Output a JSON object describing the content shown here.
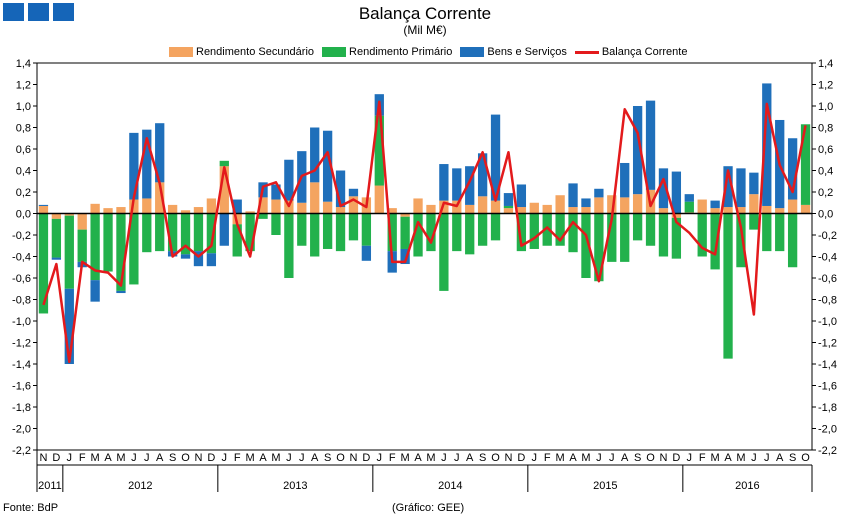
{
  "header": {
    "title": "Balança Corrente",
    "subtitle": "(Mil M€)"
  },
  "footer": {
    "source": "Fonte: BdP",
    "credit": "(Gráfico: GEE)"
  },
  "colors": {
    "secundario": "#f4a460",
    "primario": "#22b14c",
    "bens": "#1f6fba",
    "balanca": "#e31a1c"
  },
  "chart_data": {
    "type": "bar",
    "stacked": true,
    "title": "Balança Corrente",
    "ylabel": "(Mil M€)",
    "ylim": [
      -2.2,
      1.4
    ],
    "yticks": [
      "1,4",
      "1,2",
      "1,0",
      "0,8",
      "0,6",
      "0,4",
      "0,2",
      "0,0",
      "-0,2",
      "-0,4",
      "-0,6",
      "-0,8",
      "-1,0",
      "-1,2",
      "-1,4",
      "-1,6",
      "-1,8",
      "-2,0",
      "-2,2"
    ],
    "categories": [
      "N",
      "D",
      "J",
      "F",
      "M",
      "A",
      "M",
      "J",
      "J",
      "A",
      "S",
      "O",
      "N",
      "D",
      "J",
      "F",
      "M",
      "A",
      "M",
      "J",
      "J",
      "A",
      "S",
      "O",
      "N",
      "D",
      "J",
      "F",
      "M",
      "A",
      "M",
      "J",
      "J",
      "A",
      "S",
      "O",
      "N",
      "D",
      "J",
      "F",
      "M",
      "A",
      "M",
      "J",
      "J",
      "A",
      "S",
      "O",
      "N",
      "D",
      "J",
      "F",
      "M",
      "A",
      "M",
      "J",
      "J",
      "A",
      "S",
      "O"
    ],
    "year_labels": [
      {
        "label": "2011",
        "from": 0,
        "to": 1
      },
      {
        "label": "2012",
        "from": 2,
        "to": 13
      },
      {
        "label": "2013",
        "from": 14,
        "to": 25
      },
      {
        "label": "2014",
        "from": 26,
        "to": 37
      },
      {
        "label": "2015",
        "from": 38,
        "to": 49
      },
      {
        "label": "2016",
        "from": 50,
        "to": 59
      }
    ],
    "series": [
      {
        "name": "Rendimento Secundário",
        "key": "secundario",
        "values": [
          0.07,
          -0.05,
          -0.02,
          -0.15,
          0.09,
          0.05,
          0.06,
          0.13,
          0.14,
          0.29,
          0.08,
          0.03,
          0.06,
          0.14,
          0.44,
          -0.1,
          0.02,
          0.15,
          0.13,
          0.12,
          0.1,
          0.29,
          0.11,
          0.06,
          0.16,
          0.15,
          0.26,
          0.05,
          -0.03,
          0.14,
          0.08,
          0.12,
          0.12,
          0.08,
          0.16,
          0.12,
          0.05,
          0.06,
          0.1,
          0.08,
          0.17,
          0.06,
          0.06,
          0.15,
          0.17,
          0.15,
          0.18,
          0.22,
          0.05,
          -0.04,
          0.01,
          0.13,
          0.05,
          0.06,
          0.06,
          0.18,
          0.07,
          0.05,
          0.13,
          0.08
        ]
      },
      {
        "name": "Rendimento Primário",
        "key": "primario",
        "values": [
          -0.93,
          -0.36,
          -0.68,
          -0.3,
          -0.62,
          -0.54,
          -0.72,
          -0.66,
          -0.36,
          -0.35,
          -0.35,
          -0.38,
          -0.35,
          -0.37,
          0.05,
          -0.3,
          -0.35,
          -0.05,
          -0.2,
          -0.6,
          -0.3,
          -0.4,
          -0.33,
          -0.35,
          -0.25,
          -0.3,
          0.65,
          -0.35,
          -0.3,
          -0.4,
          -0.35,
          -0.72,
          -0.35,
          -0.38,
          -0.3,
          -0.25,
          0.02,
          -0.35,
          -0.33,
          -0.3,
          -0.3,
          -0.36,
          -0.6,
          -0.63,
          -0.45,
          -0.45,
          -0.25,
          -0.3,
          -0.4,
          -0.38,
          0.1,
          -0.4,
          -0.52,
          -1.35,
          -0.5,
          -0.15,
          -0.35,
          -0.35,
          -0.5,
          0.75
        ]
      },
      {
        "name": "Bens e Serviços",
        "key": "bens",
        "values": [
          0.01,
          -0.02,
          -0.7,
          -0.05,
          -0.2,
          0.0,
          -0.02,
          0.62,
          0.64,
          0.55,
          -0.05,
          -0.04,
          -0.14,
          -0.12,
          -0.3,
          0.13,
          0.0,
          0.14,
          0.14,
          0.38,
          0.48,
          0.51,
          0.66,
          0.34,
          0.07,
          -0.14,
          0.2,
          -0.2,
          -0.14,
          0.0,
          0.0,
          0.34,
          0.3,
          0.36,
          0.4,
          0.8,
          0.12,
          0.21,
          0.0,
          0.0,
          0.0,
          0.22,
          0.08,
          0.08,
          0.0,
          0.32,
          0.82,
          0.83,
          0.37,
          0.39,
          0.07,
          0.0,
          0.07,
          0.38,
          0.36,
          0.2,
          1.14,
          0.82,
          0.57,
          0.0
        ]
      },
      {
        "name": "Balança Corrente",
        "key": "balanca",
        "type": "line",
        "values": [
          -0.85,
          -0.47,
          -1.38,
          -0.45,
          -0.53,
          -0.55,
          -0.67,
          0.15,
          0.7,
          0.28,
          -0.4,
          -0.3,
          -0.4,
          -0.3,
          0.43,
          -0.1,
          -0.4,
          0.25,
          0.29,
          0.07,
          0.35,
          0.4,
          0.57,
          0.07,
          0.13,
          0.06,
          1.04,
          -0.45,
          -0.45,
          -0.08,
          -0.27,
          0.1,
          0.07,
          0.3,
          0.57,
          0.12,
          0.57,
          -0.3,
          -0.23,
          -0.13,
          -0.25,
          -0.08,
          -0.2,
          -0.63,
          -0.05,
          0.97,
          0.75,
          0.07,
          0.32,
          -0.08,
          -0.18,
          -0.32,
          -0.38,
          0.4,
          -0.13,
          -0.94,
          1.02,
          0.45,
          0.2,
          0.82
        ]
      }
    ]
  }
}
